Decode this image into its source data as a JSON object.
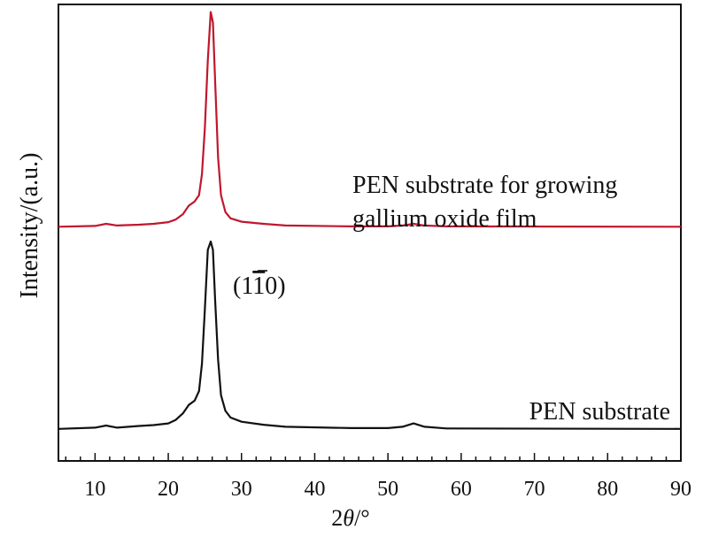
{
  "chart_data": {
    "type": "line",
    "title": "",
    "xlabel_prefix": "2",
    "xlabel_symbol": "θ",
    "xlabel_suffix": "/°",
    "ylabel": "Intensity/(a.u.)",
    "xlim": [
      5,
      90
    ],
    "ylim": [
      0,
      10
    ],
    "xticks": [
      "10",
      "20",
      "30",
      "40",
      "50",
      "60",
      "70",
      "80",
      "90"
    ],
    "series": [
      {
        "name": "PEN substrate for growing gallium oxide film",
        "label_lines": [
          "PEN substrate for growing",
          "gallium oxide film"
        ],
        "color": "#c0172d",
        "baseline": 5.35,
        "points": [
          [
            5,
            5.35
          ],
          [
            10,
            5.37
          ],
          [
            11.5,
            5.42
          ],
          [
            13,
            5.38
          ],
          [
            16,
            5.4
          ],
          [
            18,
            5.42
          ],
          [
            20,
            5.46
          ],
          [
            21,
            5.52
          ],
          [
            22,
            5.65
          ],
          [
            22.8,
            5.85
          ],
          [
            23.6,
            5.95
          ],
          [
            24.2,
            6.1
          ],
          [
            24.6,
            6.6
          ],
          [
            25.0,
            7.7
          ],
          [
            25.4,
            9.3
          ],
          [
            25.8,
            10.45
          ],
          [
            26.1,
            10.2
          ],
          [
            26.4,
            8.8
          ],
          [
            26.8,
            7.0
          ],
          [
            27.2,
            6.1
          ],
          [
            27.8,
            5.7
          ],
          [
            28.5,
            5.55
          ],
          [
            30,
            5.47
          ],
          [
            33,
            5.42
          ],
          [
            36,
            5.38
          ],
          [
            45,
            5.36
          ],
          [
            50,
            5.36
          ],
          [
            52,
            5.38
          ],
          [
            53.5,
            5.42
          ],
          [
            55,
            5.38
          ],
          [
            58,
            5.36
          ],
          [
            90,
            5.35
          ]
        ]
      },
      {
        "name": "PEN substrate",
        "label_lines": [
          "PEN substrate"
        ],
        "color": "#111111",
        "baseline": 0.55,
        "points": [
          [
            5,
            0.55
          ],
          [
            10,
            0.58
          ],
          [
            11.5,
            0.63
          ],
          [
            13,
            0.58
          ],
          [
            16,
            0.62
          ],
          [
            18,
            0.64
          ],
          [
            20,
            0.68
          ],
          [
            21,
            0.76
          ],
          [
            22,
            0.92
          ],
          [
            22.8,
            1.12
          ],
          [
            23.6,
            1.22
          ],
          [
            24.2,
            1.45
          ],
          [
            24.6,
            2.1
          ],
          [
            25.0,
            3.4
          ],
          [
            25.4,
            4.8
          ],
          [
            25.8,
            5.0
          ],
          [
            26.1,
            4.8
          ],
          [
            26.4,
            3.6
          ],
          [
            26.8,
            2.2
          ],
          [
            27.2,
            1.35
          ],
          [
            27.8,
            0.98
          ],
          [
            28.5,
            0.82
          ],
          [
            30,
            0.72
          ],
          [
            33,
            0.65
          ],
          [
            36,
            0.6
          ],
          [
            45,
            0.57
          ],
          [
            50,
            0.57
          ],
          [
            52,
            0.6
          ],
          [
            53.5,
            0.68
          ],
          [
            55,
            0.6
          ],
          [
            58,
            0.56
          ],
          [
            90,
            0.55
          ]
        ]
      }
    ],
    "annotations": [
      {
        "text_before": "(1",
        "overbar_digit": "1",
        "text_after": "0)",
        "near_x": 27.5,
        "near_y": 4.1
      }
    ]
  }
}
